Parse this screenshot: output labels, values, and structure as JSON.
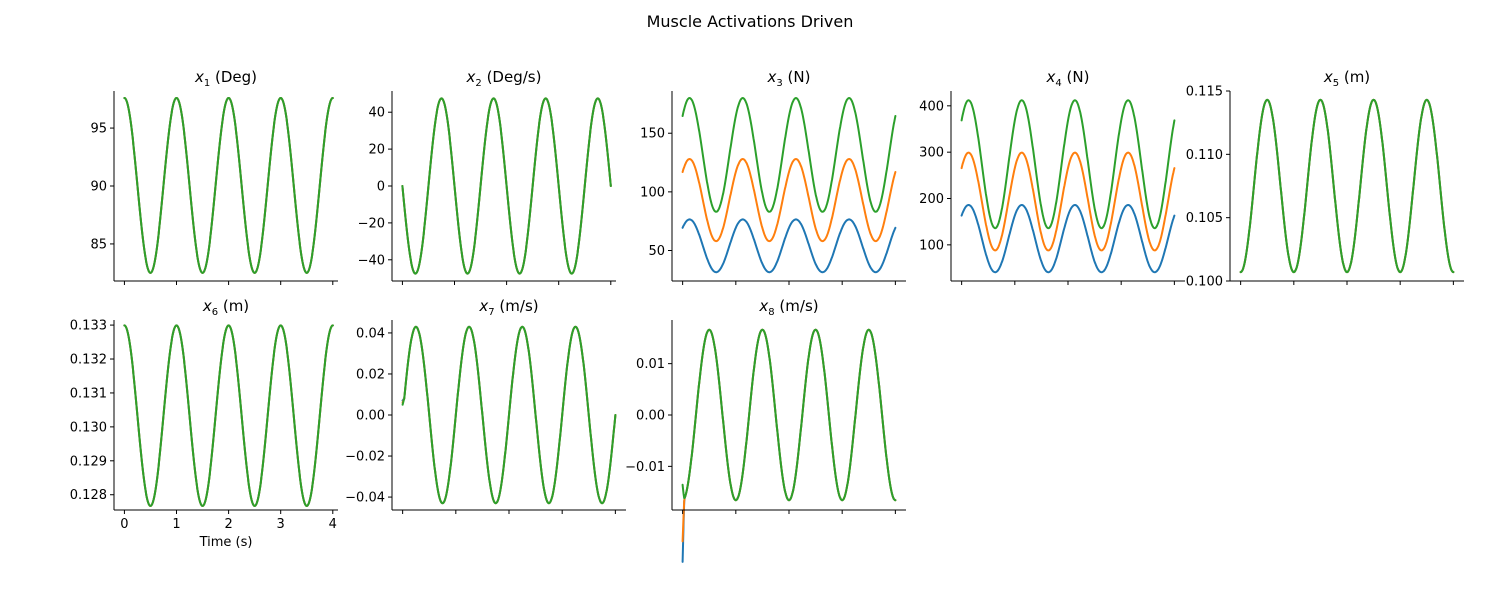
{
  "figure": {
    "title": "Muscle Activations Driven"
  },
  "colors": [
    "#1f77b4",
    "#ff7f0e",
    "#2ca02c"
  ],
  "chart_data": [
    {
      "type": "line",
      "title": "x1 (Deg)",
      "title_var": "x",
      "title_sub": "1",
      "title_unit": " (Deg)",
      "xlabel": "",
      "ylabel": "",
      "xlim": [
        -0.2,
        4.1
      ],
      "ylim": [
        81.8,
        98.2
      ],
      "yticks": [
        85,
        90,
        95
      ],
      "ytick_labels": [
        "85",
        "90",
        "95"
      ],
      "xticks": [
        0,
        1,
        2,
        3,
        4
      ],
      "xtick_labels": [],
      "model": {
        "kind": "cos",
        "period": 1.0,
        "x_end": 4.0,
        "mid": [
          90.05,
          90.05,
          90.05
        ],
        "amp": [
          7.55,
          7.55,
          7.55
        ],
        "trans": [
          0,
          0,
          0
        ]
      },
      "series": [
        {
          "color": "#1f77b4"
        },
        {
          "color": "#ff7f0e"
        },
        {
          "color": "#2ca02c"
        }
      ]
    },
    {
      "type": "line",
      "title": "x2 (Deg/s)",
      "title_var": "x",
      "title_sub": "2",
      "title_unit": " (Deg/s)",
      "xlabel": "",
      "ylabel": "",
      "xlim": [
        -0.2,
        4.1
      ],
      "ylim": [
        -51.5,
        51.5
      ],
      "yticks": [
        -40,
        -20,
        0,
        20,
        40
      ],
      "ytick_labels": [
        "−40",
        "−20",
        "0",
        "20",
        "40"
      ],
      "xticks": [
        0,
        1,
        2,
        3,
        4
      ],
      "xtick_labels": [],
      "model": {
        "kind": "negsin",
        "period": 1.0,
        "x_end": 4.0,
        "mid": [
          0,
          0,
          0
        ],
        "amp": [
          47.5,
          47.5,
          47.5
        ],
        "trans": [
          0,
          0,
          0
        ]
      },
      "series": [
        {
          "color": "#1f77b4"
        },
        {
          "color": "#ff7f0e"
        },
        {
          "color": "#2ca02c"
        }
      ]
    },
    {
      "type": "line",
      "title": "x3 (N)",
      "title_var": "x",
      "title_sub": "3",
      "title_unit": " (N)",
      "xlabel": "",
      "ylabel": "",
      "xlim": [
        -0.2,
        4.2
      ],
      "ylim": [
        24,
        186
      ],
      "yticks": [
        50,
        100,
        150
      ],
      "ytick_labels": [
        "50",
        "100",
        "150"
      ],
      "xticks": [
        0,
        1,
        2,
        3,
        4
      ],
      "xtick_labels": [],
      "model": {
        "kind": "cos3",
        "period": 1.0,
        "x_end": 4.0,
        "mid": [
          54,
          93,
          131.5
        ],
        "amp": [
          22.5,
          35,
          48.5
        ],
        "trans": [
          0,
          0,
          0
        ]
      },
      "series": [
        {
          "color": "#1f77b4"
        },
        {
          "color": "#ff7f0e"
        },
        {
          "color": "#2ca02c"
        }
      ]
    },
    {
      "type": "line",
      "title": "x4 (N)",
      "title_var": "x",
      "title_sub": "4",
      "title_unit": " (N)",
      "xlabel": "",
      "ylabel": "",
      "xlim": [
        -0.2,
        4.2
      ],
      "ylim": [
        22,
        432
      ],
      "yticks": [
        100,
        200,
        300,
        400
      ],
      "ytick_labels": [
        "100",
        "200",
        "300",
        "400"
      ],
      "xticks": [
        0,
        1,
        2,
        3,
        4
      ],
      "xtick_labels": [],
      "model": {
        "kind": "cos3",
        "period": 1.0,
        "x_end": 4.0,
        "mid": [
          113.5,
          193.5,
          274
        ],
        "amp": [
          72.5,
          105.5,
          138
        ],
        "trans": [
          0,
          0,
          0
        ]
      },
      "series": [
        {
          "color": "#1f77b4"
        },
        {
          "color": "#ff7f0e"
        },
        {
          "color": "#2ca02c"
        }
      ]
    },
    {
      "type": "line",
      "title": "x5 (m)",
      "title_var": "x",
      "title_sub": "5",
      "title_unit": " (m)",
      "xlabel": "",
      "ylabel": "",
      "xlim": [
        -0.2,
        4.2
      ],
      "ylim": [
        0.1,
        0.115
      ],
      "yticks": [
        0.1,
        0.105,
        0.11,
        0.115
      ],
      "ytick_labels": [
        "0.100",
        "0.105",
        "0.110",
        "0.115"
      ],
      "xticks": [
        0,
        1,
        2,
        3,
        4
      ],
      "xtick_labels": [],
      "model": {
        "kind": "negcos",
        "period": 1.0,
        "x_end": 4.0,
        "mid": [
          0.1075,
          0.1075,
          0.1075
        ],
        "amp": [
          0.0068,
          0.0068,
          0.0068
        ],
        "trans": [
          0,
          0,
          0
        ]
      },
      "series": [
        {
          "color": "#1f77b4"
        },
        {
          "color": "#ff7f0e"
        },
        {
          "color": "#2ca02c"
        }
      ]
    },
    {
      "type": "line",
      "title": "x6 (m)",
      "title_var": "x",
      "title_sub": "6",
      "title_unit": " (m)",
      "xlabel": "Time (s)",
      "ylabel": "",
      "xlim": [
        -0.2,
        4.1
      ],
      "ylim": [
        0.12755,
        0.13315
      ],
      "yticks": [
        0.128,
        0.129,
        0.13,
        0.131,
        0.132,
        0.133
      ],
      "ytick_labels": [
        "0.128",
        "0.129",
        "0.130",
        "0.131",
        "0.132",
        "0.133"
      ],
      "xticks": [
        0,
        1,
        2,
        3,
        4
      ],
      "xtick_labels": [
        "0",
        "1",
        "2",
        "3",
        "4"
      ],
      "model": {
        "kind": "cos",
        "period": 1.0,
        "x_end": 4.0,
        "mid": [
          0.13033,
          0.13033,
          0.13033
        ],
        "amp": [
          0.00266,
          0.00266,
          0.00266
        ],
        "trans": [
          0,
          0,
          0
        ]
      },
      "series": [
        {
          "color": "#1f77b4"
        },
        {
          "color": "#ff7f0e"
        },
        {
          "color": "#2ca02c"
        }
      ]
    },
    {
      "type": "line",
      "title": "x7 (m/s)",
      "title_var": "x",
      "title_sub": "7",
      "title_unit": " (m/s)",
      "xlabel": "",
      "ylabel": "",
      "xlim": [
        -0.2,
        4.2
      ],
      "ylim": [
        -0.0463,
        0.0463
      ],
      "yticks": [
        -0.04,
        -0.02,
        0,
        0.02,
        0.04
      ],
      "ytick_labels": [
        "−0.04",
        "−0.02",
        "0.00",
        "0.02",
        "0.04"
      ],
      "xticks": [
        0,
        1,
        2,
        3,
        4
      ],
      "xtick_labels": [],
      "model": {
        "kind": "sin",
        "period": 1.0,
        "x_end": 4.0,
        "mid": [
          0,
          0,
          0
        ],
        "amp": [
          0.043,
          0.043,
          0.043
        ],
        "trans": [
          0.007,
          0.006,
          0.005
        ]
      },
      "series": [
        {
          "color": "#1f77b4"
        },
        {
          "color": "#ff7f0e"
        },
        {
          "color": "#2ca02c"
        }
      ]
    },
    {
      "type": "line",
      "title": "x8 (m/s)",
      "title_var": "x",
      "title_sub": "8",
      "title_unit": " (m/s)",
      "xlabel": "",
      "ylabel": "",
      "xlim": [
        -0.2,
        4.2
      ],
      "ylim": [
        -0.0185,
        0.0185
      ],
      "yticks": [
        -0.01,
        0,
        0.01
      ],
      "ytick_labels": [
        "−0.01",
        "0.00",
        "0.01"
      ],
      "xticks": [
        0,
        1,
        2,
        3,
        4
      ],
      "xtick_labels": [],
      "model": {
        "kind": "negcos",
        "period": 1.0,
        "x_end": 4.0,
        "mid": [
          0,
          0,
          0
        ],
        "amp": [
          0.0166,
          0.0166,
          0.0166
        ],
        "trans": [
          -0.012,
          -0.008,
          0.003
        ]
      },
      "series": [
        {
          "color": "#1f77b4"
        },
        {
          "color": "#ff7f0e"
        },
        {
          "color": "#2ca02c"
        }
      ]
    }
  ]
}
